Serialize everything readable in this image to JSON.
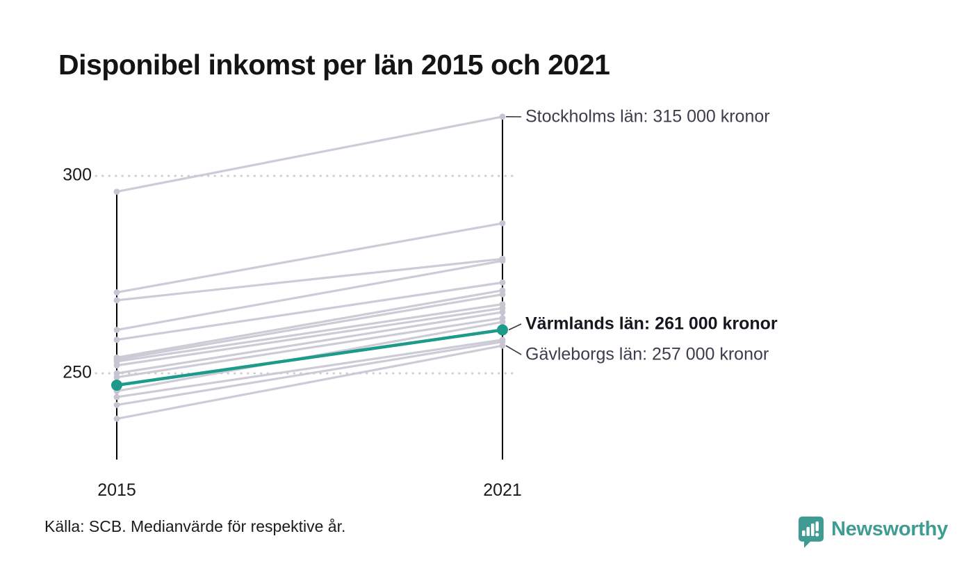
{
  "title": "Disponibel inkomst per län 2015 och 2021",
  "source_note": "Källa: SCB. Medianvärde för respektive år.",
  "branding": {
    "logo_text": "Newsworthy",
    "logo_icon": "speech-bubble-bar-chart-icon",
    "logo_color": "#3f9c93"
  },
  "colors": {
    "highlight_line": "#1e9a8b",
    "muted_line": "#c7c5d1",
    "grid_dots": "#cfcfcf",
    "axis": "#000000",
    "annotation_text": "#3d3d4c",
    "highlight_annotation_text": "#17171f"
  },
  "axis": {
    "x_labels": [
      "2015",
      "2021"
    ],
    "y_tick_labels": [
      "300",
      "250"
    ]
  },
  "chart_data": {
    "type": "line",
    "subtype": "slopegraph",
    "title": "Disponibel inkomst per län 2015 och 2021",
    "x": [
      "2015",
      "2021"
    ],
    "y_unit": "tusen kronor",
    "ylim": [
      228,
      320
    ],
    "gridlines": [
      300,
      250
    ],
    "grid": "dotted",
    "legend_position": "none",
    "series": [
      {
        "name": "Stockholms län",
        "values": [
          296,
          315
        ],
        "label": "Stockholms län: 315 000 kronor",
        "highlight": false,
        "annotated": true
      },
      {
        "name": "",
        "values": [
          270.5,
          288
        ],
        "highlight": false,
        "annotated": false
      },
      {
        "name": "",
        "values": [
          268.5,
          279
        ],
        "highlight": false,
        "annotated": false
      },
      {
        "name": "",
        "values": [
          261,
          278.5
        ],
        "highlight": false,
        "annotated": false
      },
      {
        "name": "",
        "values": [
          258.5,
          273
        ],
        "highlight": false,
        "annotated": false
      },
      {
        "name": "",
        "values": [
          254,
          271
        ],
        "highlight": false,
        "annotated": false
      },
      {
        "name": "",
        "values": [
          253.5,
          270
        ],
        "highlight": false,
        "annotated": false
      },
      {
        "name": "",
        "values": [
          253,
          267.5
        ],
        "highlight": false,
        "annotated": false
      },
      {
        "name": "",
        "values": [
          252,
          266.5
        ],
        "highlight": false,
        "annotated": false
      },
      {
        "name": "",
        "values": [
          250,
          265.5
        ],
        "highlight": false,
        "annotated": false
      },
      {
        "name": "",
        "values": [
          249,
          264
        ],
        "highlight": false,
        "annotated": false
      },
      {
        "name": "",
        "values": [
          245.5,
          263
        ],
        "highlight": false,
        "annotated": false
      },
      {
        "name": "Värmlands län",
        "values": [
          247,
          261
        ],
        "label": "Värmlands län: 261 000 kronor",
        "highlight": true,
        "annotated": true
      },
      {
        "name": "",
        "values": [
          244,
          258.5
        ],
        "highlight": false,
        "annotated": false
      },
      {
        "name": "",
        "values": [
          242,
          258
        ],
        "highlight": false,
        "annotated": false
      },
      {
        "name": "Gävleborgs län",
        "values": [
          238.5,
          257
        ],
        "label": "Gävleborgs län: 257 000 kronor",
        "highlight": false,
        "annotated": true
      }
    ]
  }
}
